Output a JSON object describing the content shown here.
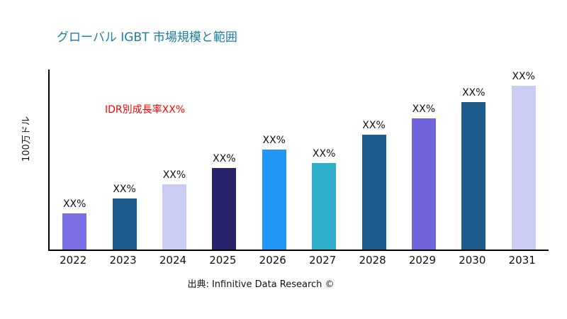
{
  "chart_data": {
    "type": "bar",
    "title": "グローバル IGBT 市場規模と範囲",
    "ylabel": "100万ドル",
    "annotation": "IDR別成長率XX%",
    "caption": "出典: Infinitive Data Research ©",
    "categories": [
      "2022",
      "2023",
      "2024",
      "2025",
      "2026",
      "2027",
      "2028",
      "2029",
      "2030",
      "2031"
    ],
    "values": [
      22,
      31,
      40,
      50,
      61,
      53,
      70,
      80,
      90,
      100
    ],
    "data_labels": [
      "XX%",
      "XX%",
      "XX%",
      "XX%",
      "XX%",
      "XX%",
      "XX%",
      "XX%",
      "XX%",
      "XX%"
    ],
    "bar_colors": [
      "#7c6fe6",
      "#1e5b8d",
      "#cbccf2",
      "#27246b",
      "#2196f3",
      "#2faec9",
      "#1e5b8d",
      "#7163db",
      "#1e5b8d",
      "#cbccf2"
    ],
    "ylim": [
      0,
      110
    ],
    "grid": false,
    "legend": null,
    "colors": {
      "title": "#1a7f9c",
      "annotation": "#ff0000",
      "axis": "#000000",
      "text": "#111111",
      "background": "#ffffff"
    }
  }
}
